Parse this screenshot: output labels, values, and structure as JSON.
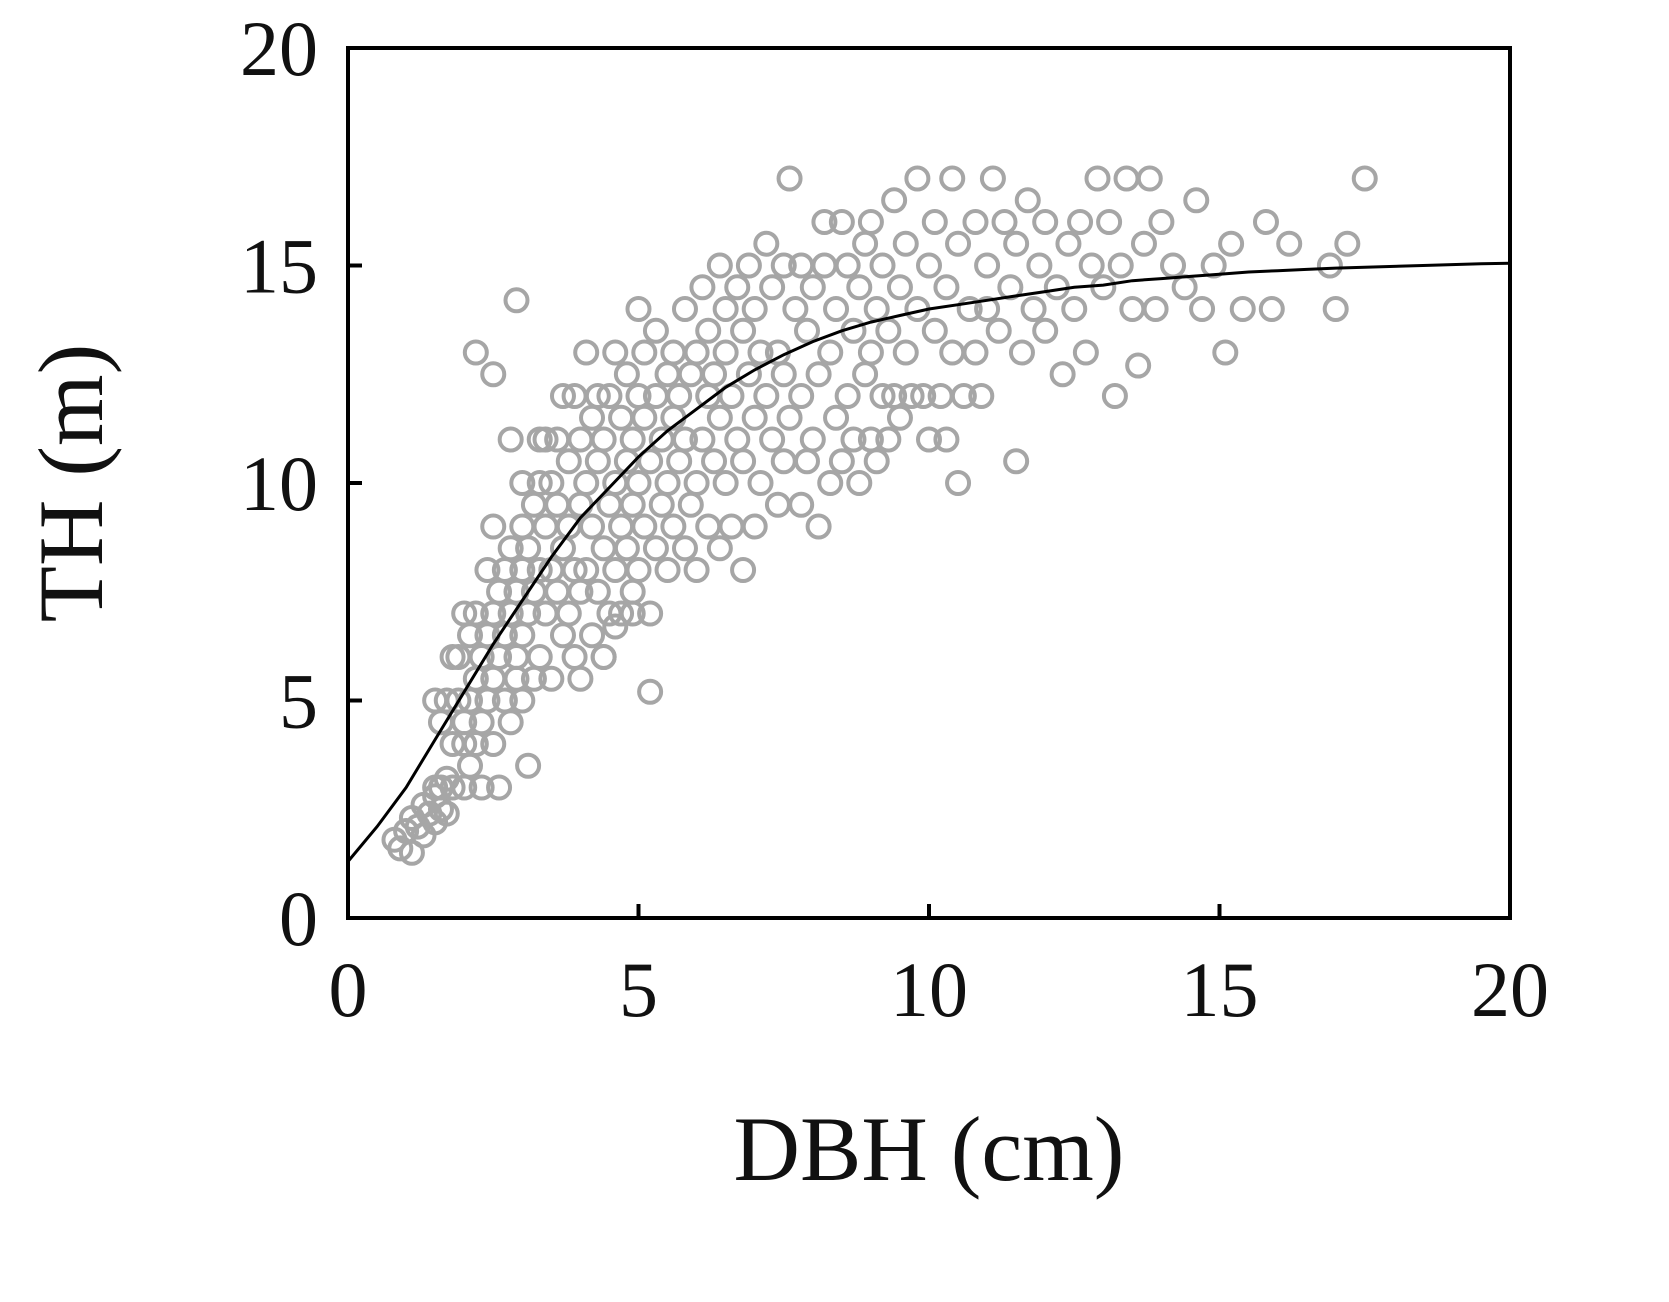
{
  "chart_data": {
    "type": "scatter",
    "xlabel": "DBH (cm)",
    "ylabel": "TH (m)",
    "xlim": [
      0,
      20
    ],
    "ylim": [
      0,
      20
    ],
    "x_ticks": [
      "0",
      "5",
      "10",
      "15",
      "20"
    ],
    "y_ticks": [
      "0",
      "5",
      "10",
      "15",
      "20"
    ],
    "grid": false,
    "legend": "none",
    "colors": {
      "points": "#a6a6a6",
      "curve": "#000000",
      "axes": "#000000"
    },
    "points": [
      [
        0.8,
        1.8
      ],
      [
        0.9,
        1.6
      ],
      [
        1.0,
        2.0
      ],
      [
        1.1,
        1.5
      ],
      [
        1.1,
        2.3
      ],
      [
        1.2,
        2.1
      ],
      [
        1.3,
        1.9
      ],
      [
        1.3,
        2.6
      ],
      [
        1.4,
        2.4
      ],
      [
        1.5,
        2.2
      ],
      [
        1.5,
        2.8
      ],
      [
        1.6,
        2.5
      ],
      [
        1.6,
        3.0
      ],
      [
        1.7,
        2.4
      ],
      [
        1.7,
        3.2
      ],
      [
        1.5,
        3.0
      ],
      [
        1.6,
        4.5
      ],
      [
        1.5,
        5.0
      ],
      [
        1.7,
        5.0
      ],
      [
        1.8,
        3.0
      ],
      [
        1.8,
        4.0
      ],
      [
        1.8,
        6.0
      ],
      [
        1.9,
        5.0
      ],
      [
        1.9,
        6.0
      ],
      [
        2.0,
        3.0
      ],
      [
        2.0,
        4.0
      ],
      [
        2.0,
        4.5
      ],
      [
        2.0,
        7.0
      ],
      [
        2.1,
        3.5
      ],
      [
        2.1,
        5.0
      ],
      [
        2.1,
        6.5
      ],
      [
        2.2,
        4.0
      ],
      [
        2.2,
        5.5
      ],
      [
        2.2,
        7.0
      ],
      [
        2.3,
        4.5
      ],
      [
        2.3,
        6.0
      ],
      [
        2.3,
        3.0
      ],
      [
        2.4,
        5.0
      ],
      [
        2.4,
        6.5
      ],
      [
        2.4,
        8.0
      ],
      [
        2.5,
        4.0
      ],
      [
        2.5,
        5.5
      ],
      [
        2.5,
        7.0
      ],
      [
        2.5,
        9.0
      ],
      [
        2.6,
        6.0
      ],
      [
        2.6,
        7.5
      ],
      [
        2.6,
        3.0
      ],
      [
        2.7,
        5.0
      ],
      [
        2.7,
        6.5
      ],
      [
        2.7,
        8.0
      ],
      [
        2.8,
        4.5
      ],
      [
        2.8,
        7.0
      ],
      [
        2.8,
        8.5
      ],
      [
        2.9,
        5.5
      ],
      [
        2.9,
        6.0
      ],
      [
        2.9,
        7.5
      ],
      [
        3.0,
        5.0
      ],
      [
        3.0,
        6.5
      ],
      [
        3.0,
        8.0
      ],
      [
        3.0,
        9.0
      ],
      [
        3.0,
        10.0
      ],
      [
        3.1,
        7.0
      ],
      [
        3.1,
        8.5
      ],
      [
        3.1,
        3.5
      ],
      [
        3.2,
        5.5
      ],
      [
        3.2,
        7.5
      ],
      [
        3.2,
        9.5
      ],
      [
        3.3,
        6.0
      ],
      [
        3.3,
        8.0
      ],
      [
        3.3,
        10.0
      ],
      [
        3.4,
        7.0
      ],
      [
        3.4,
        9.0
      ],
      [
        3.4,
        11.0
      ],
      [
        3.5,
        5.5
      ],
      [
        3.5,
        8.0
      ],
      [
        3.5,
        10.0
      ],
      [
        3.6,
        7.5
      ],
      [
        3.6,
        9.5
      ],
      [
        3.6,
        11.0
      ],
      [
        3.7,
        6.5
      ],
      [
        3.7,
        8.5
      ],
      [
        3.8,
        7.0
      ],
      [
        3.8,
        9.0
      ],
      [
        3.8,
        10.5
      ],
      [
        3.9,
        6.0
      ],
      [
        3.9,
        8.0
      ],
      [
        3.9,
        12.0
      ],
      [
        4.0,
        7.5
      ],
      [
        4.0,
        9.5
      ],
      [
        4.0,
        11.0
      ],
      [
        4.0,
        5.5
      ],
      [
        4.1,
        8.0
      ],
      [
        4.1,
        10.0
      ],
      [
        4.1,
        13.0
      ],
      [
        4.2,
        6.5
      ],
      [
        4.2,
        9.0
      ],
      [
        4.2,
        11.5
      ],
      [
        4.3,
        7.5
      ],
      [
        4.3,
        10.5
      ],
      [
        4.3,
        12.0
      ],
      [
        4.4,
        6.0
      ],
      [
        4.4,
        8.5
      ],
      [
        4.4,
        11.0
      ],
      [
        4.5,
        7.0
      ],
      [
        4.5,
        9.5
      ],
      [
        4.5,
        12.0
      ],
      [
        4.6,
        8.0
      ],
      [
        4.6,
        10.0
      ],
      [
        4.6,
        13.0
      ],
      [
        4.7,
        7.0
      ],
      [
        4.7,
        9.0
      ],
      [
        4.7,
        11.5
      ],
      [
        4.8,
        8.5
      ],
      [
        4.8,
        10.5
      ],
      [
        4.8,
        12.5
      ],
      [
        4.9,
        7.5
      ],
      [
        4.9,
        9.5
      ],
      [
        4.9,
        11.0
      ],
      [
        5.0,
        8.0
      ],
      [
        5.0,
        10.0
      ],
      [
        5.0,
        12.0
      ],
      [
        5.0,
        14.0
      ],
      [
        5.1,
        9.0
      ],
      [
        5.1,
        11.5
      ],
      [
        5.1,
        13.0
      ],
      [
        5.2,
        5.2
      ],
      [
        5.2,
        7.0
      ],
      [
        5.2,
        10.5
      ],
      [
        5.3,
        8.5
      ],
      [
        5.3,
        12.0
      ],
      [
        5.3,
        13.5
      ],
      [
        5.4,
        9.5
      ],
      [
        5.4,
        11.0
      ],
      [
        5.5,
        8.0
      ],
      [
        5.5,
        10.0
      ],
      [
        5.5,
        12.5
      ],
      [
        5.6,
        9.0
      ],
      [
        5.6,
        11.5
      ],
      [
        5.6,
        13.0
      ],
      [
        5.7,
        10.5
      ],
      [
        5.7,
        12.0
      ],
      [
        5.8,
        8.5
      ],
      [
        5.8,
        11.0
      ],
      [
        5.8,
        14.0
      ],
      [
        5.9,
        9.5
      ],
      [
        5.9,
        12.5
      ],
      [
        6.0,
        8.0
      ],
      [
        6.0,
        10.0
      ],
      [
        6.0,
        13.0
      ],
      [
        6.1,
        11.0
      ],
      [
        6.1,
        14.5
      ],
      [
        6.2,
        9.0
      ],
      [
        6.2,
        12.0
      ],
      [
        6.2,
        13.5
      ],
      [
        6.3,
        10.5
      ],
      [
        6.3,
        12.5
      ],
      [
        6.4,
        8.5
      ],
      [
        6.4,
        11.5
      ],
      [
        6.4,
        15.0
      ],
      [
        6.5,
        10.0
      ],
      [
        6.5,
        13.0
      ],
      [
        6.5,
        14.0
      ],
      [
        6.6,
        9.0
      ],
      [
        6.6,
        12.0
      ],
      [
        6.7,
        11.0
      ],
      [
        6.7,
        14.5
      ],
      [
        6.8,
        8.0
      ],
      [
        6.8,
        10.5
      ],
      [
        6.8,
        13.5
      ],
      [
        6.9,
        12.5
      ],
      [
        6.9,
        15.0
      ],
      [
        7.0,
        9.0
      ],
      [
        7.0,
        11.5
      ],
      [
        7.0,
        14.0
      ],
      [
        7.1,
        10.0
      ],
      [
        7.1,
        13.0
      ],
      [
        7.2,
        12.0
      ],
      [
        7.2,
        15.5
      ],
      [
        7.3,
        11.0
      ],
      [
        7.3,
        14.5
      ],
      [
        7.4,
        9.5
      ],
      [
        7.4,
        13.0
      ],
      [
        7.5,
        10.5
      ],
      [
        7.5,
        12.5
      ],
      [
        7.5,
        15.0
      ],
      [
        7.6,
        17.0
      ],
      [
        7.6,
        11.5
      ],
      [
        7.7,
        14.0
      ],
      [
        7.8,
        9.5
      ],
      [
        7.8,
        12.0
      ],
      [
        7.8,
        15.0
      ],
      [
        7.9,
        10.5
      ],
      [
        7.9,
        13.5
      ],
      [
        8.0,
        11.0
      ],
      [
        8.0,
        14.5
      ],
      [
        8.1,
        9.0
      ],
      [
        8.1,
        12.5
      ],
      [
        8.2,
        15.0
      ],
      [
        8.2,
        16.0
      ],
      [
        8.3,
        10.0
      ],
      [
        8.3,
        13.0
      ],
      [
        8.4,
        11.5
      ],
      [
        8.4,
        14.0
      ],
      [
        8.5,
        16.0
      ],
      [
        8.5,
        10.5
      ],
      [
        8.6,
        12.0
      ],
      [
        8.6,
        15.0
      ],
      [
        8.7,
        11.0
      ],
      [
        8.7,
        13.5
      ],
      [
        8.8,
        10.0
      ],
      [
        8.8,
        14.5
      ],
      [
        8.9,
        12.5
      ],
      [
        8.9,
        15.5
      ],
      [
        9.0,
        11.0
      ],
      [
        9.0,
        13.0
      ],
      [
        9.0,
        16.0
      ],
      [
        9.1,
        10.5
      ],
      [
        9.1,
        14.0
      ],
      [
        9.2,
        12.0
      ],
      [
        9.2,
        15.0
      ],
      [
        9.3,
        11.0
      ],
      [
        9.3,
        13.5
      ],
      [
        9.4,
        16.5
      ],
      [
        9.4,
        12.0
      ],
      [
        9.5,
        14.5
      ],
      [
        9.5,
        11.5
      ],
      [
        9.6,
        15.5
      ],
      [
        9.6,
        13.0
      ],
      [
        9.7,
        12.0
      ],
      [
        9.8,
        14.0
      ],
      [
        9.8,
        17.0
      ],
      [
        9.9,
        12.0
      ],
      [
        10.0,
        15.0
      ],
      [
        10.0,
        11.0
      ],
      [
        10.1,
        13.5
      ],
      [
        10.1,
        16.0
      ],
      [
        10.2,
        12.0
      ],
      [
        10.3,
        14.5
      ],
      [
        10.3,
        11.0
      ],
      [
        10.4,
        17.0
      ],
      [
        10.4,
        13.0
      ],
      [
        10.5,
        10.0
      ],
      [
        10.5,
        15.5
      ],
      [
        10.6,
        12.0
      ],
      [
        10.7,
        14.0
      ],
      [
        10.8,
        16.0
      ],
      [
        10.8,
        13.0
      ],
      [
        10.9,
        12.0
      ],
      [
        11.0,
        15.0
      ],
      [
        11.0,
        14.0
      ],
      [
        11.1,
        17.0
      ],
      [
        11.2,
        13.5
      ],
      [
        11.3,
        16.0
      ],
      [
        11.4,
        14.5
      ],
      [
        11.5,
        10.5
      ],
      [
        11.5,
        15.5
      ],
      [
        11.6,
        13.0
      ],
      [
        11.7,
        16.5
      ],
      [
        11.8,
        14.0
      ],
      [
        11.9,
        15.0
      ],
      [
        12.0,
        13.5
      ],
      [
        12.0,
        16.0
      ],
      [
        12.2,
        14.5
      ],
      [
        12.3,
        12.5
      ],
      [
        12.4,
        15.5
      ],
      [
        12.5,
        14.0
      ],
      [
        12.6,
        16.0
      ],
      [
        12.7,
        13.0
      ],
      [
        12.8,
        15.0
      ],
      [
        12.9,
        17.0
      ],
      [
        13.0,
        14.5
      ],
      [
        13.1,
        16.0
      ],
      [
        13.2,
        12.0
      ],
      [
        13.3,
        15.0
      ],
      [
        13.4,
        17.0
      ],
      [
        13.5,
        14.0
      ],
      [
        13.6,
        12.7
      ],
      [
        13.7,
        15.5
      ],
      [
        13.8,
        17.0
      ],
      [
        13.9,
        14.0
      ],
      [
        14.0,
        16.0
      ],
      [
        14.2,
        15.0
      ],
      [
        14.4,
        14.5
      ],
      [
        14.6,
        16.5
      ],
      [
        14.7,
        14.0
      ],
      [
        14.9,
        15.0
      ],
      [
        15.1,
        13.0
      ],
      [
        15.2,
        15.5
      ],
      [
        15.4,
        14.0
      ],
      [
        15.8,
        16.0
      ],
      [
        15.9,
        14.0
      ],
      [
        16.2,
        15.5
      ],
      [
        16.9,
        15.0
      ],
      [
        17.0,
        14.0
      ],
      [
        17.2,
        15.5
      ],
      [
        17.5,
        17.0
      ],
      [
        2.2,
        13.0
      ],
      [
        2.5,
        12.5
      ],
      [
        2.9,
        14.2
      ],
      [
        2.8,
        11.0
      ],
      [
        3.3,
        11.0
      ],
      [
        3.7,
        12.0
      ],
      [
        4.4,
        6.0
      ],
      [
        4.6,
        6.7
      ],
      [
        4.9,
        7.0
      ]
    ],
    "curve": {
      "label": "",
      "points": [
        [
          0,
          1.3
        ],
        [
          0.5,
          2.1
        ],
        [
          1,
          3.0
        ],
        [
          1.5,
          4.1
        ],
        [
          2,
          5.2
        ],
        [
          2.5,
          6.3
        ],
        [
          3,
          7.3
        ],
        [
          3.5,
          8.3
        ],
        [
          4,
          9.2
        ],
        [
          4.5,
          9.9
        ],
        [
          5,
          10.6
        ],
        [
          5.5,
          11.2
        ],
        [
          6,
          11.7
        ],
        [
          6.5,
          12.2
        ],
        [
          7,
          12.6
        ],
        [
          7.5,
          12.95
        ],
        [
          8,
          13.25
        ],
        [
          8.5,
          13.5
        ],
        [
          9,
          13.7
        ],
        [
          9.5,
          13.85
        ],
        [
          10,
          14.0
        ],
        [
          10.5,
          14.1
        ],
        [
          11,
          14.2
        ],
        [
          11.5,
          14.3
        ],
        [
          12,
          14.4
        ],
        [
          12.5,
          14.5
        ],
        [
          13,
          14.55
        ],
        [
          13.5,
          14.65
        ],
        [
          14,
          14.7
        ],
        [
          14.5,
          14.75
        ],
        [
          15,
          14.8
        ],
        [
          15.5,
          14.85
        ],
        [
          16,
          14.88
        ],
        [
          16.5,
          14.91
        ],
        [
          17,
          14.94
        ],
        [
          17.5,
          14.96
        ],
        [
          18,
          14.98
        ],
        [
          18.5,
          15.0
        ],
        [
          19,
          15.02
        ],
        [
          19.5,
          15.04
        ],
        [
          20,
          15.05
        ]
      ]
    }
  }
}
